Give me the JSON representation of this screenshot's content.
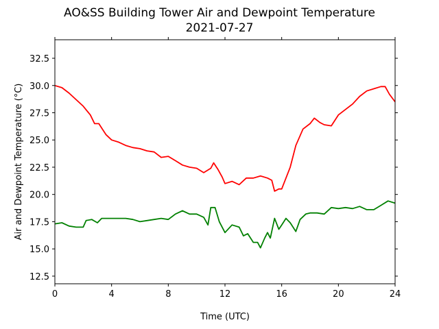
{
  "chart_data": {
    "type": "line",
    "title": "AO&SS Building Tower Air and Dewpoint Temperature",
    "subtitle": "2021-07-27",
    "xlabel": "Time (UTC)",
    "ylabel": "Air and Dewpoint Temperature (°C)",
    "xlim": [
      0,
      24
    ],
    "ylim": [
      11.8,
      34.2
    ],
    "xticks": [
      0,
      4,
      8,
      12,
      16,
      20,
      24
    ],
    "yticks": [
      12.5,
      15.0,
      17.5,
      20.0,
      22.5,
      25.0,
      27.5,
      30.0,
      32.5
    ],
    "xtick_labels": [
      "0",
      "4",
      "8",
      "12",
      "16",
      "20",
      "24"
    ],
    "ytick_labels": [
      "12.5",
      "15.0",
      "17.5",
      "20.0",
      "22.5",
      "25.0",
      "27.5",
      "30.0",
      "32.5"
    ],
    "grid": false,
    "series": [
      {
        "color": "#ff0000",
        "points": [
          [
            0,
            30.0
          ],
          [
            0.5,
            29.8
          ],
          [
            1,
            29.3
          ],
          [
            1.5,
            28.7
          ],
          [
            2,
            28.1
          ],
          [
            2.5,
            27.3
          ],
          [
            2.8,
            26.5
          ],
          [
            3.1,
            26.5
          ],
          [
            3.3,
            26.1
          ],
          [
            3.6,
            25.5
          ],
          [
            4,
            25.0
          ],
          [
            4.5,
            24.8
          ],
          [
            5,
            24.5
          ],
          [
            5.5,
            24.3
          ],
          [
            6,
            24.2
          ],
          [
            6.5,
            24.0
          ],
          [
            7,
            23.9
          ],
          [
            7.5,
            23.4
          ],
          [
            8,
            23.5
          ],
          [
            8.5,
            23.1
          ],
          [
            9,
            22.7
          ],
          [
            9.5,
            22.5
          ],
          [
            10,
            22.4
          ],
          [
            10.5,
            22.0
          ],
          [
            11,
            22.4
          ],
          [
            11.2,
            22.9
          ],
          [
            11.5,
            22.3
          ],
          [
            11.8,
            21.6
          ],
          [
            12,
            21.0
          ],
          [
            12.5,
            21.2
          ],
          [
            13,
            20.9
          ],
          [
            13.5,
            21.5
          ],
          [
            14,
            21.5
          ],
          [
            14.5,
            21.7
          ],
          [
            15,
            21.5
          ],
          [
            15.3,
            21.3
          ],
          [
            15.5,
            20.3
          ],
          [
            15.8,
            20.5
          ],
          [
            16,
            20.5
          ],
          [
            16.3,
            21.5
          ],
          [
            16.6,
            22.5
          ],
          [
            17,
            24.5
          ],
          [
            17.5,
            26.0
          ],
          [
            18,
            26.5
          ],
          [
            18.3,
            27.0
          ],
          [
            18.7,
            26.6
          ],
          [
            19,
            26.4
          ],
          [
            19.5,
            26.3
          ],
          [
            20,
            27.3
          ],
          [
            20.5,
            27.8
          ],
          [
            21,
            28.3
          ],
          [
            21.5,
            29.0
          ],
          [
            22,
            29.5
          ],
          [
            22.5,
            29.7
          ],
          [
            23,
            29.9
          ],
          [
            23.3,
            29.9
          ],
          [
            23.6,
            29.2
          ],
          [
            24,
            28.5
          ]
        ]
      },
      {
        "color": "#008000",
        "points": [
          [
            0,
            17.3
          ],
          [
            0.5,
            17.4
          ],
          [
            1,
            17.1
          ],
          [
            1.5,
            17.0
          ],
          [
            2,
            17.0
          ],
          [
            2.2,
            17.6
          ],
          [
            2.6,
            17.7
          ],
          [
            3,
            17.4
          ],
          [
            3.3,
            17.8
          ],
          [
            4,
            17.8
          ],
          [
            4.5,
            17.8
          ],
          [
            5,
            17.8
          ],
          [
            5.5,
            17.7
          ],
          [
            6,
            17.5
          ],
          [
            6.5,
            17.6
          ],
          [
            7,
            17.7
          ],
          [
            7.5,
            17.8
          ],
          [
            8,
            17.7
          ],
          [
            8.5,
            18.2
          ],
          [
            9,
            18.5
          ],
          [
            9.5,
            18.2
          ],
          [
            10,
            18.2
          ],
          [
            10.5,
            17.9
          ],
          [
            10.8,
            17.2
          ],
          [
            11,
            18.8
          ],
          [
            11.3,
            18.8
          ],
          [
            11.6,
            17.5
          ],
          [
            12,
            16.5
          ],
          [
            12.5,
            17.2
          ],
          [
            13,
            17.0
          ],
          [
            13.3,
            16.2
          ],
          [
            13.6,
            16.4
          ],
          [
            14,
            15.6
          ],
          [
            14.3,
            15.6
          ],
          [
            14.5,
            15.1
          ],
          [
            14.8,
            16.0
          ],
          [
            15,
            16.5
          ],
          [
            15.2,
            16.0
          ],
          [
            15.5,
            17.8
          ],
          [
            15.8,
            16.8
          ],
          [
            16,
            17.2
          ],
          [
            16.3,
            17.8
          ],
          [
            16.6,
            17.4
          ],
          [
            17,
            16.6
          ],
          [
            17.3,
            17.7
          ],
          [
            17.7,
            18.2
          ],
          [
            18,
            18.3
          ],
          [
            18.5,
            18.3
          ],
          [
            19,
            18.2
          ],
          [
            19.5,
            18.8
          ],
          [
            20,
            18.7
          ],
          [
            20.5,
            18.8
          ],
          [
            21,
            18.7
          ],
          [
            21.5,
            18.9
          ],
          [
            22,
            18.6
          ],
          [
            22.5,
            18.6
          ],
          [
            23,
            19.0
          ],
          [
            23.5,
            19.4
          ],
          [
            24,
            19.2
          ]
        ]
      }
    ]
  }
}
